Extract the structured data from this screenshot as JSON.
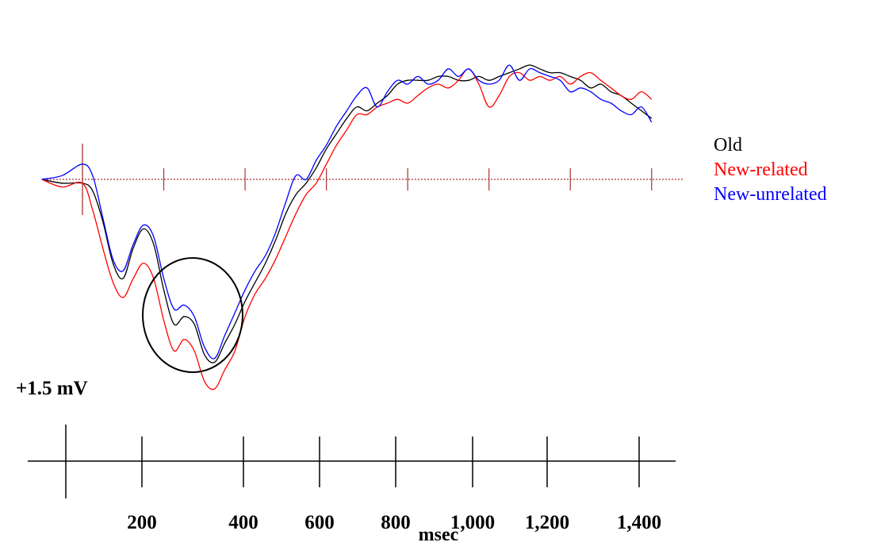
{
  "chart_data": {
    "type": "line",
    "title": "",
    "xlabel": "msec",
    "ylabel": "",
    "scale_label": "+1.5 mV",
    "x_tick_labels": [
      "200",
      "400",
      "600",
      "800",
      "1,000",
      "1,200",
      "1,400"
    ],
    "xlim": [
      -100,
      1400
    ],
    "ylim_uv": [
      -5.0,
      2.5
    ],
    "y_direction": "negative up",
    "baseline_uv": 0,
    "grid": false,
    "legend_position": "right",
    "annotation": "circle",
    "x": [
      -100,
      -50,
      0,
      25,
      50,
      75,
      100,
      125,
      150,
      175,
      200,
      225,
      250,
      275,
      300,
      325,
      350,
      375,
      400,
      425,
      450,
      475,
      500,
      525,
      550,
      575,
      600,
      625,
      650,
      675,
      700,
      725,
      750,
      775,
      800,
      825,
      850,
      875,
      900,
      925,
      950,
      975,
      1000,
      1025,
      1050,
      1075,
      1100,
      1125,
      1150,
      1175,
      1200,
      1225,
      1250,
      1275,
      1300,
      1325,
      1350,
      1375,
      1400
    ],
    "series": [
      {
        "name": "Old",
        "color": "#000000",
        "values": [
          0.0,
          0.1,
          0.1,
          0.3,
          1.1,
          2.2,
          2.6,
          1.8,
          1.3,
          1.7,
          2.9,
          3.8,
          3.6,
          3.8,
          4.6,
          4.8,
          4.3,
          3.8,
          3.2,
          2.7,
          2.2,
          1.6,
          0.9,
          0.4,
          0.1,
          -0.3,
          -0.8,
          -1.2,
          -1.6,
          -1.9,
          -1.8,
          -2.0,
          -2.2,
          -2.5,
          -2.6,
          -2.6,
          -2.6,
          -2.7,
          -2.7,
          -2.6,
          -2.6,
          -2.7,
          -2.6,
          -2.7,
          -2.8,
          -2.9,
          -3.0,
          -2.9,
          -2.8,
          -2.8,
          -2.7,
          -2.6,
          -2.4,
          -2.5,
          -2.3,
          -2.2,
          -2.0,
          -1.8,
          -1.6
        ]
      },
      {
        "name": "New-related",
        "color": "#ff0000",
        "values": [
          0.0,
          0.2,
          0.1,
          0.8,
          1.8,
          2.7,
          3.1,
          2.6,
          2.2,
          2.6,
          3.7,
          4.5,
          4.2,
          4.5,
          5.3,
          5.5,
          5.0,
          4.5,
          3.6,
          3.0,
          2.6,
          2.1,
          1.5,
          0.9,
          0.4,
          0.1,
          -0.4,
          -0.9,
          -1.3,
          -1.7,
          -1.7,
          -1.9,
          -2.0,
          -2.1,
          -2.0,
          -2.2,
          -2.4,
          -2.5,
          -2.4,
          -2.6,
          -2.9,
          -2.5,
          -1.9,
          -2.2,
          -2.7,
          -2.8,
          -2.6,
          -2.7,
          -2.6,
          -2.7,
          -2.5,
          -2.7,
          -2.8,
          -2.6,
          -2.4,
          -2.2,
          -2.1,
          -2.3,
          -2.1
        ]
      },
      {
        "name": "New-unrelated",
        "color": "#0000ff",
        "values": [
          0.0,
          -0.1,
          -0.4,
          -0.1,
          1.0,
          2.1,
          2.4,
          1.7,
          1.2,
          1.5,
          2.6,
          3.4,
          3.3,
          3.6,
          4.4,
          4.7,
          4.1,
          3.5,
          2.9,
          2.4,
          2.0,
          1.4,
          0.6,
          -0.1,
          0.0,
          -0.5,
          -0.9,
          -1.4,
          -1.8,
          -2.2,
          -2.4,
          -1.9,
          -2.3,
          -2.6,
          -2.5,
          -2.7,
          -2.5,
          -2.6,
          -2.9,
          -2.7,
          -2.9,
          -2.6,
          -2.5,
          -2.6,
          -3.0,
          -2.6,
          -2.9,
          -2.8,
          -2.7,
          -2.6,
          -2.3,
          -2.4,
          -2.3,
          -2.1,
          -2.0,
          -1.8,
          -1.7,
          -1.9,
          -1.5
        ]
      }
    ]
  },
  "colors": {
    "baseline": "#aa3333",
    "axis": "#000000"
  }
}
